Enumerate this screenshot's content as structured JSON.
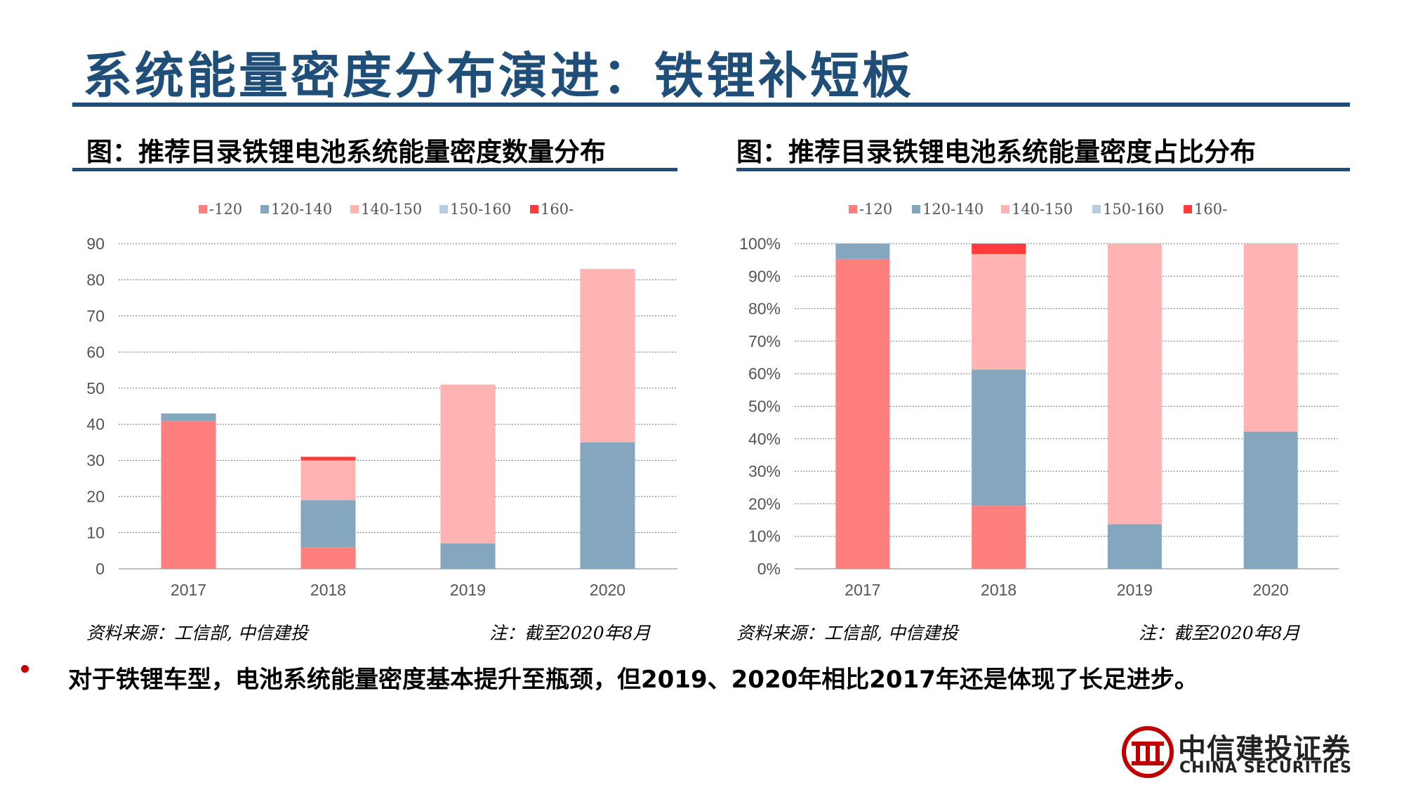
{
  "page": {
    "title": "系统能量密度分布演进：铁锂补短板",
    "bullet": "对于铁锂车型，电池系统能量密度基本提升至瓶颈，但2019、2020年相比2017年还是体现了长足进步。"
  },
  "left_panel": {
    "subtitle": "图：推荐目录铁锂电池系统能量密度数量分布",
    "source": "资料来源：工信部, 中信建投",
    "note": "注：截至2020年8月"
  },
  "right_panel": {
    "subtitle": "图：推荐目录铁锂电池系统能量密度占比分布",
    "source": "资料来源：工信部, 中信建投",
    "note": "注：截至2020年8月"
  },
  "logo": {
    "cn": "中信建投证券",
    "en": "CHINA SECURITIES"
  },
  "colors": {
    "title": "#1f4e79",
    "bullet": "#c00000",
    "logo": "#c00000"
  },
  "chart_data": [
    {
      "type": "bar",
      "stacked": true,
      "categories": [
        "2017",
        "2018",
        "2019",
        "2020"
      ],
      "series": [
        {
          "name": "-120",
          "color": "#ff7f7f",
          "values": [
            41,
            6,
            0,
            0
          ]
        },
        {
          "name": "120-140",
          "color": "#84a6bf",
          "values": [
            2,
            13,
            7,
            35
          ]
        },
        {
          "name": "140-150",
          "color": "#ffb3b3",
          "values": [
            0,
            11,
            44,
            48
          ]
        },
        {
          "name": "150-160",
          "color": "#b8cde0",
          "values": [
            0,
            0,
            0,
            0
          ]
        },
        {
          "name": "160-",
          "color": "#ff3b3b",
          "values": [
            0,
            1,
            0,
            0
          ]
        }
      ],
      "ylim": [
        0,
        90
      ],
      "yticks": [
        "0",
        "10",
        "20",
        "30",
        "40",
        "50",
        "60",
        "70",
        "80",
        "90"
      ],
      "grid": true,
      "legend": "top"
    },
    {
      "type": "bar",
      "stacked": true,
      "percent": true,
      "categories": [
        "2017",
        "2018",
        "2019",
        "2020"
      ],
      "series": [
        {
          "name": "-120",
          "color": "#ff7f7f",
          "values": [
            95.3,
            19.4,
            0,
            0
          ]
        },
        {
          "name": "120-140",
          "color": "#84a6bf",
          "values": [
            4.7,
            41.9,
            13.7,
            42.2
          ]
        },
        {
          "name": "140-150",
          "color": "#ffb3b3",
          "values": [
            0,
            35.5,
            86.3,
            57.8
          ]
        },
        {
          "name": "150-160",
          "color": "#b8cde0",
          "values": [
            0,
            0,
            0,
            0
          ]
        },
        {
          "name": "160-",
          "color": "#ff3b3b",
          "values": [
            0,
            3.2,
            0,
            0
          ]
        }
      ],
      "ylim": [
        0,
        100
      ],
      "yticks": [
        "0%",
        "10%",
        "20%",
        "30%",
        "40%",
        "50%",
        "60%",
        "70%",
        "80%",
        "90%",
        "100%"
      ],
      "grid": true,
      "legend": "top"
    }
  ]
}
